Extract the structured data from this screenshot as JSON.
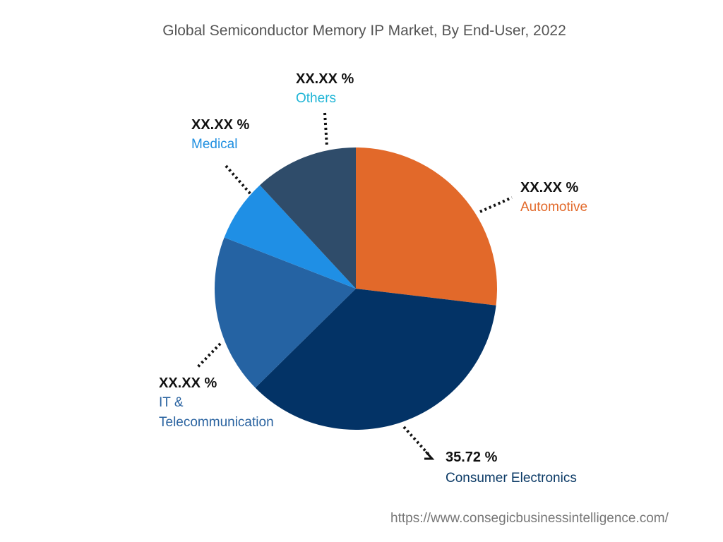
{
  "chart_data": {
    "type": "pie",
    "title": "Global Semiconductor Memory IP Market, By End-User, 2022",
    "start_angle_deg": 0,
    "direction": "clockwise",
    "slices": [
      {
        "name": "Automotive",
        "value": 26.9,
        "label": "XX.XX %",
        "color": "#E2692A",
        "label_color": "#E2692A"
      },
      {
        "name": "Consumer Electronics",
        "value": 35.72,
        "label": "35.72 %",
        "color": "#033366",
        "label_color": "#0B3A66"
      },
      {
        "name": "IT & Telecommunication",
        "name_lines": [
          "IT &",
          "Telecommunication"
        ],
        "value": 18.3,
        "label": "XX.XX %",
        "color": "#2563A3",
        "label_color": "#2A63A0"
      },
      {
        "name": "Medical",
        "value": 7.2,
        "label": "XX.XX %",
        "color": "#1F8FE5",
        "label_color": "#1F8FE0"
      },
      {
        "name": "Others",
        "value": 11.9,
        "label": "XX.XX %",
        "color": "#2F4C6A",
        "label_color": "#1FB5D6"
      }
    ]
  },
  "source_url": "https://www.consegicbusinessintelligence.com/"
}
